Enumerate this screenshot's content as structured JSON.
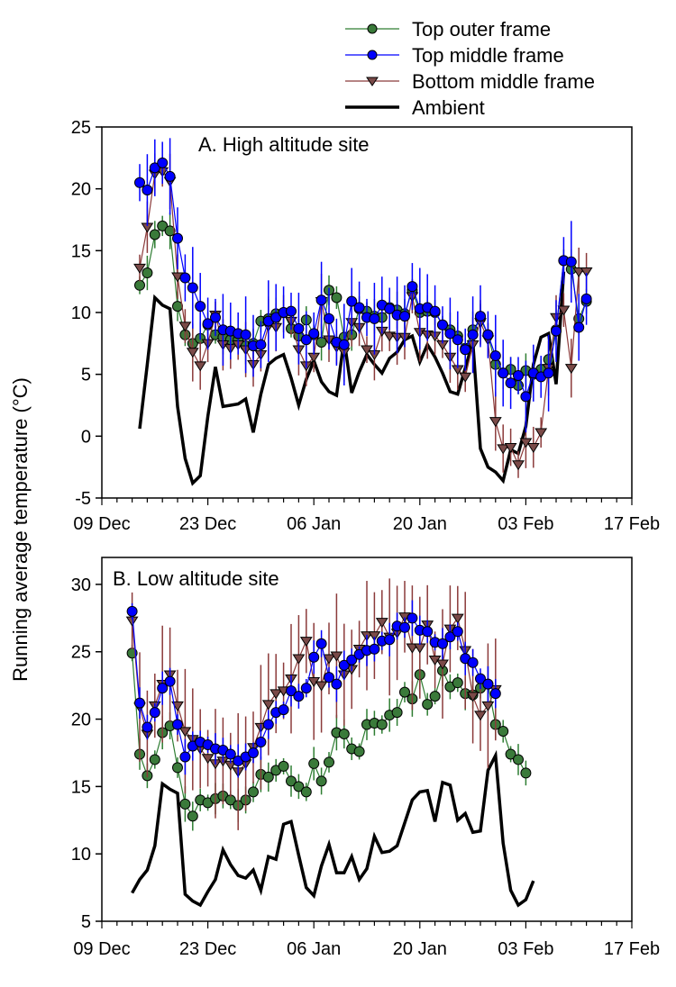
{
  "chart_data": {
    "type": "line",
    "ylabel": "Running average temperature (°C)",
    "legend": {
      "placement": "top-right",
      "entries": [
        {
          "name": "Top outer frame",
          "color": "#2e7d32",
          "fill": "#3a7a3a",
          "marker": "circle"
        },
        {
          "name": "Top middle frame",
          "color": "#0000ff",
          "fill": "#0000ff",
          "marker": "circle"
        },
        {
          "name": "Bottom middle frame",
          "color": "#8b3a3a",
          "fill": "#7a4a48",
          "marker": "triangle-down"
        },
        {
          "name": "Ambient",
          "color": "#000000",
          "marker": "none"
        }
      ]
    },
    "x_tick_labels": [
      "09 Dec",
      "23 Dec",
      "06 Jan",
      "20 Jan",
      "03 Feb",
      "17 Feb"
    ],
    "x_unit": "days since 09 Dec",
    "xlim": [
      0,
      70
    ],
    "panels": [
      {
        "title": "A. High altitude site",
        "ylim": [
          -5,
          25
        ],
        "yticks": [
          -5,
          0,
          5,
          10,
          15,
          20,
          25
        ],
        "x_start_day": 5,
        "series": [
          {
            "name": "Top outer frame",
            "err": 1.2,
            "values": [
              12.2,
              13.2,
              16.3,
              17.0,
              16.6,
              10.5,
              8.2,
              7.5,
              7.9,
              9.0,
              8.2,
              8.0,
              7.8,
              7.8,
              7.3,
              7.5,
              9.3,
              9.5,
              9.9,
              10.0,
              8.7,
              8.1,
              9.4,
              8.2,
              7.6,
              11.8,
              11.2,
              8.0,
              8.2,
              10.3,
              10.1,
              9.7,
              9.6,
              10.4,
              10.2,
              9.9,
              11.8,
              10.0,
              10.1,
              10.0,
              9.0,
              8.6,
              8.1,
              7.1,
              8.6,
              9.5,
              8.2,
              5.8,
              5.1,
              5.4,
              4.1,
              5.3,
              5.0,
              5.4,
              6.2,
              8.6,
              14.2,
              13.5,
              9.5,
              10.9
            ]
          },
          {
            "name": "Top middle frame",
            "err": 2.5,
            "values": [
              20.5,
              19.9,
              21.7,
              22.1,
              21.0,
              16.0,
              12.8,
              12.0,
              10.5,
              9.1,
              9.6,
              8.6,
              8.5,
              8.3,
              8.2,
              7.3,
              7.4,
              9.3,
              9.6,
              10.0,
              10.1,
              8.7,
              7.8,
              8.3,
              11.0,
              9.5,
              7.6,
              7.4,
              10.9,
              10.4,
              9.6,
              9.5,
              10.6,
              10.3,
              9.8,
              9.7,
              12.1,
              10.3,
              10.4,
              10.1,
              9.0,
              8.3,
              7.8,
              7.0,
              8.2,
              9.7,
              8.2,
              6.5,
              5.1,
              4.3,
              4.9,
              3.2,
              5.1,
              4.8,
              5.1,
              8.5,
              14.2,
              14.1,
              8.8,
              11.1
            ]
          },
          {
            "name": "Bottom middle frame",
            "err": 1.8,
            "values": [
              13.6,
              16.9,
              21.2,
              21.4,
              20.6,
              12.9,
              8.9,
              6.8,
              5.7,
              7.5,
              9.8,
              7.4,
              7.1,
              7.4,
              7.0,
              5.8,
              6.6,
              8.9,
              8.8,
              9.9,
              9.3,
              7.0,
              5.7,
              6.4,
              10.9,
              7.8,
              7.2,
              6.8,
              9.2,
              8.8,
              7.0,
              6.6,
              8.5,
              8.1,
              8.0,
              8.0,
              11.3,
              8.4,
              8.2,
              8.1,
              7.4,
              6.4,
              5.4,
              4.8,
              7.4,
              9.2,
              7.8,
              1.2,
              -1.0,
              -0.9,
              -2.3,
              -0.5,
              -0.9,
              0.3,
              5.5,
              9.6,
              10.2,
              5.5,
              13.3,
              13.3
            ]
          },
          {
            "name": "Ambient",
            "err": 0,
            "values": [
              0.6,
              5.8,
              11.2,
              10.6,
              10.3,
              2.4,
              -1.8,
              -3.8,
              -3.2,
              1.6,
              5.6,
              2.4,
              2.5,
              2.6,
              3.0,
              0.3,
              3.4,
              5.8,
              6.3,
              6.6,
              4.7,
              2.5,
              4.6,
              6.1,
              4.4,
              3.6,
              3.3,
              7.8,
              3.5,
              5.2,
              6.6,
              5.8,
              5.1,
              6.3,
              6.8,
              7.8,
              8.1,
              6.0,
              7.4,
              6.4,
              5.1,
              3.6,
              3.4,
              5.5,
              7.6,
              -1.0,
              -2.5,
              -2.9,
              -3.6,
              -1.1,
              -1.4,
              0.8,
              5.8,
              8.0,
              8.3,
              4.2,
              13.3
            ]
          }
        ]
      },
      {
        "title": "B. Low altitude site",
        "ylim": [
          5,
          32
        ],
        "yticks": [
          5,
          10,
          15,
          20,
          25,
          30
        ],
        "x_start_day": 4,
        "series": [
          {
            "name": "Top outer frame",
            "err": 1.0,
            "values": [
              24.9,
              17.4,
              15.8,
              17.0,
              19.0,
              19.5,
              16.4,
              13.7,
              12.8,
              14.0,
              13.8,
              14.1,
              14.3,
              14.0,
              13.6,
              14.0,
              14.6,
              15.9,
              15.7,
              16.2,
              16.5,
              15.4,
              15.0,
              14.6,
              16.7,
              15.4,
              16.8,
              19.0,
              18.9,
              17.8,
              17.6,
              19.6,
              19.7,
              19.6,
              20.3,
              20.5,
              22.0,
              21.5,
              23.3,
              21.1,
              21.7,
              23.6,
              22.4,
              22.7,
              21.9,
              21.8,
              22.3,
              22.6,
              19.6,
              19.1,
              17.4,
              17.0,
              16.0
            ]
          },
          {
            "name": "Top middle frame",
            "err": 1.0,
            "values": [
              28.0,
              21.2,
              19.4,
              20.5,
              22.3,
              22.8,
              19.6,
              17.2,
              18.0,
              18.3,
              18.1,
              17.8,
              17.7,
              17.4,
              16.9,
              17.2,
              17.5,
              18.3,
              19.6,
              20.5,
              20.7,
              22.1,
              21.7,
              22.3,
              24.6,
              25.6,
              23.1,
              22.6,
              24.0,
              24.4,
              24.8,
              25.1,
              25.2,
              25.8,
              25.9,
              26.9,
              26.8,
              27.5,
              26.6,
              26.5,
              25.7,
              25.6,
              26.1,
              26.5,
              24.5,
              24.2,
              23.0,
              22.6,
              21.9
            ]
          },
          {
            "name": "Bottom middle frame",
            "err": 3.5,
            "values": [
              27.3,
              20.9,
              18.9,
              21.0,
              22.6,
              23.3,
              21.0,
              19.1,
              18.5,
              17.8,
              17.1,
              16.7,
              16.9,
              16.6,
              16.1,
              16.7,
              17.9,
              19.4,
              21.1,
              21.9,
              22.1,
              23.0,
              24.5,
              25.8,
              22.8,
              22.5,
              24.5,
              24.7,
              23.3,
              23.7,
              25.2,
              26.2,
              26.2,
              27.2,
              26.1,
              26.4,
              27.6,
              25.3,
              25.3,
              27.0,
              24.4,
              24.1,
              26.7,
              27.5,
              25.1,
              21.7,
              20.3,
              21.0,
              22.2
            ]
          },
          {
            "name": "Ambient",
            "err": 0,
            "values": [
              7.1,
              8.1,
              8.8,
              10.6,
              15.2,
              14.8,
              14.5,
              7.0,
              6.5,
              6.2,
              7.2,
              8.1,
              10.3,
              9.2,
              8.4,
              8.2,
              8.8,
              7.3,
              9.8,
              9.6,
              12.2,
              12.4,
              9.9,
              7.5,
              6.9,
              9.1,
              10.7,
              8.6,
              8.6,
              9.8,
              8.1,
              8.9,
              11.3,
              10.1,
              10.2,
              10.6,
              12.3,
              14.0,
              14.6,
              14.7,
              12.4,
              15.3,
              15.1,
              12.5,
              13.0,
              11.6,
              11.7,
              16.2,
              17.3,
              10.8,
              7.3,
              6.2,
              6.6,
              8.0
            ]
          }
        ]
      }
    ]
  }
}
